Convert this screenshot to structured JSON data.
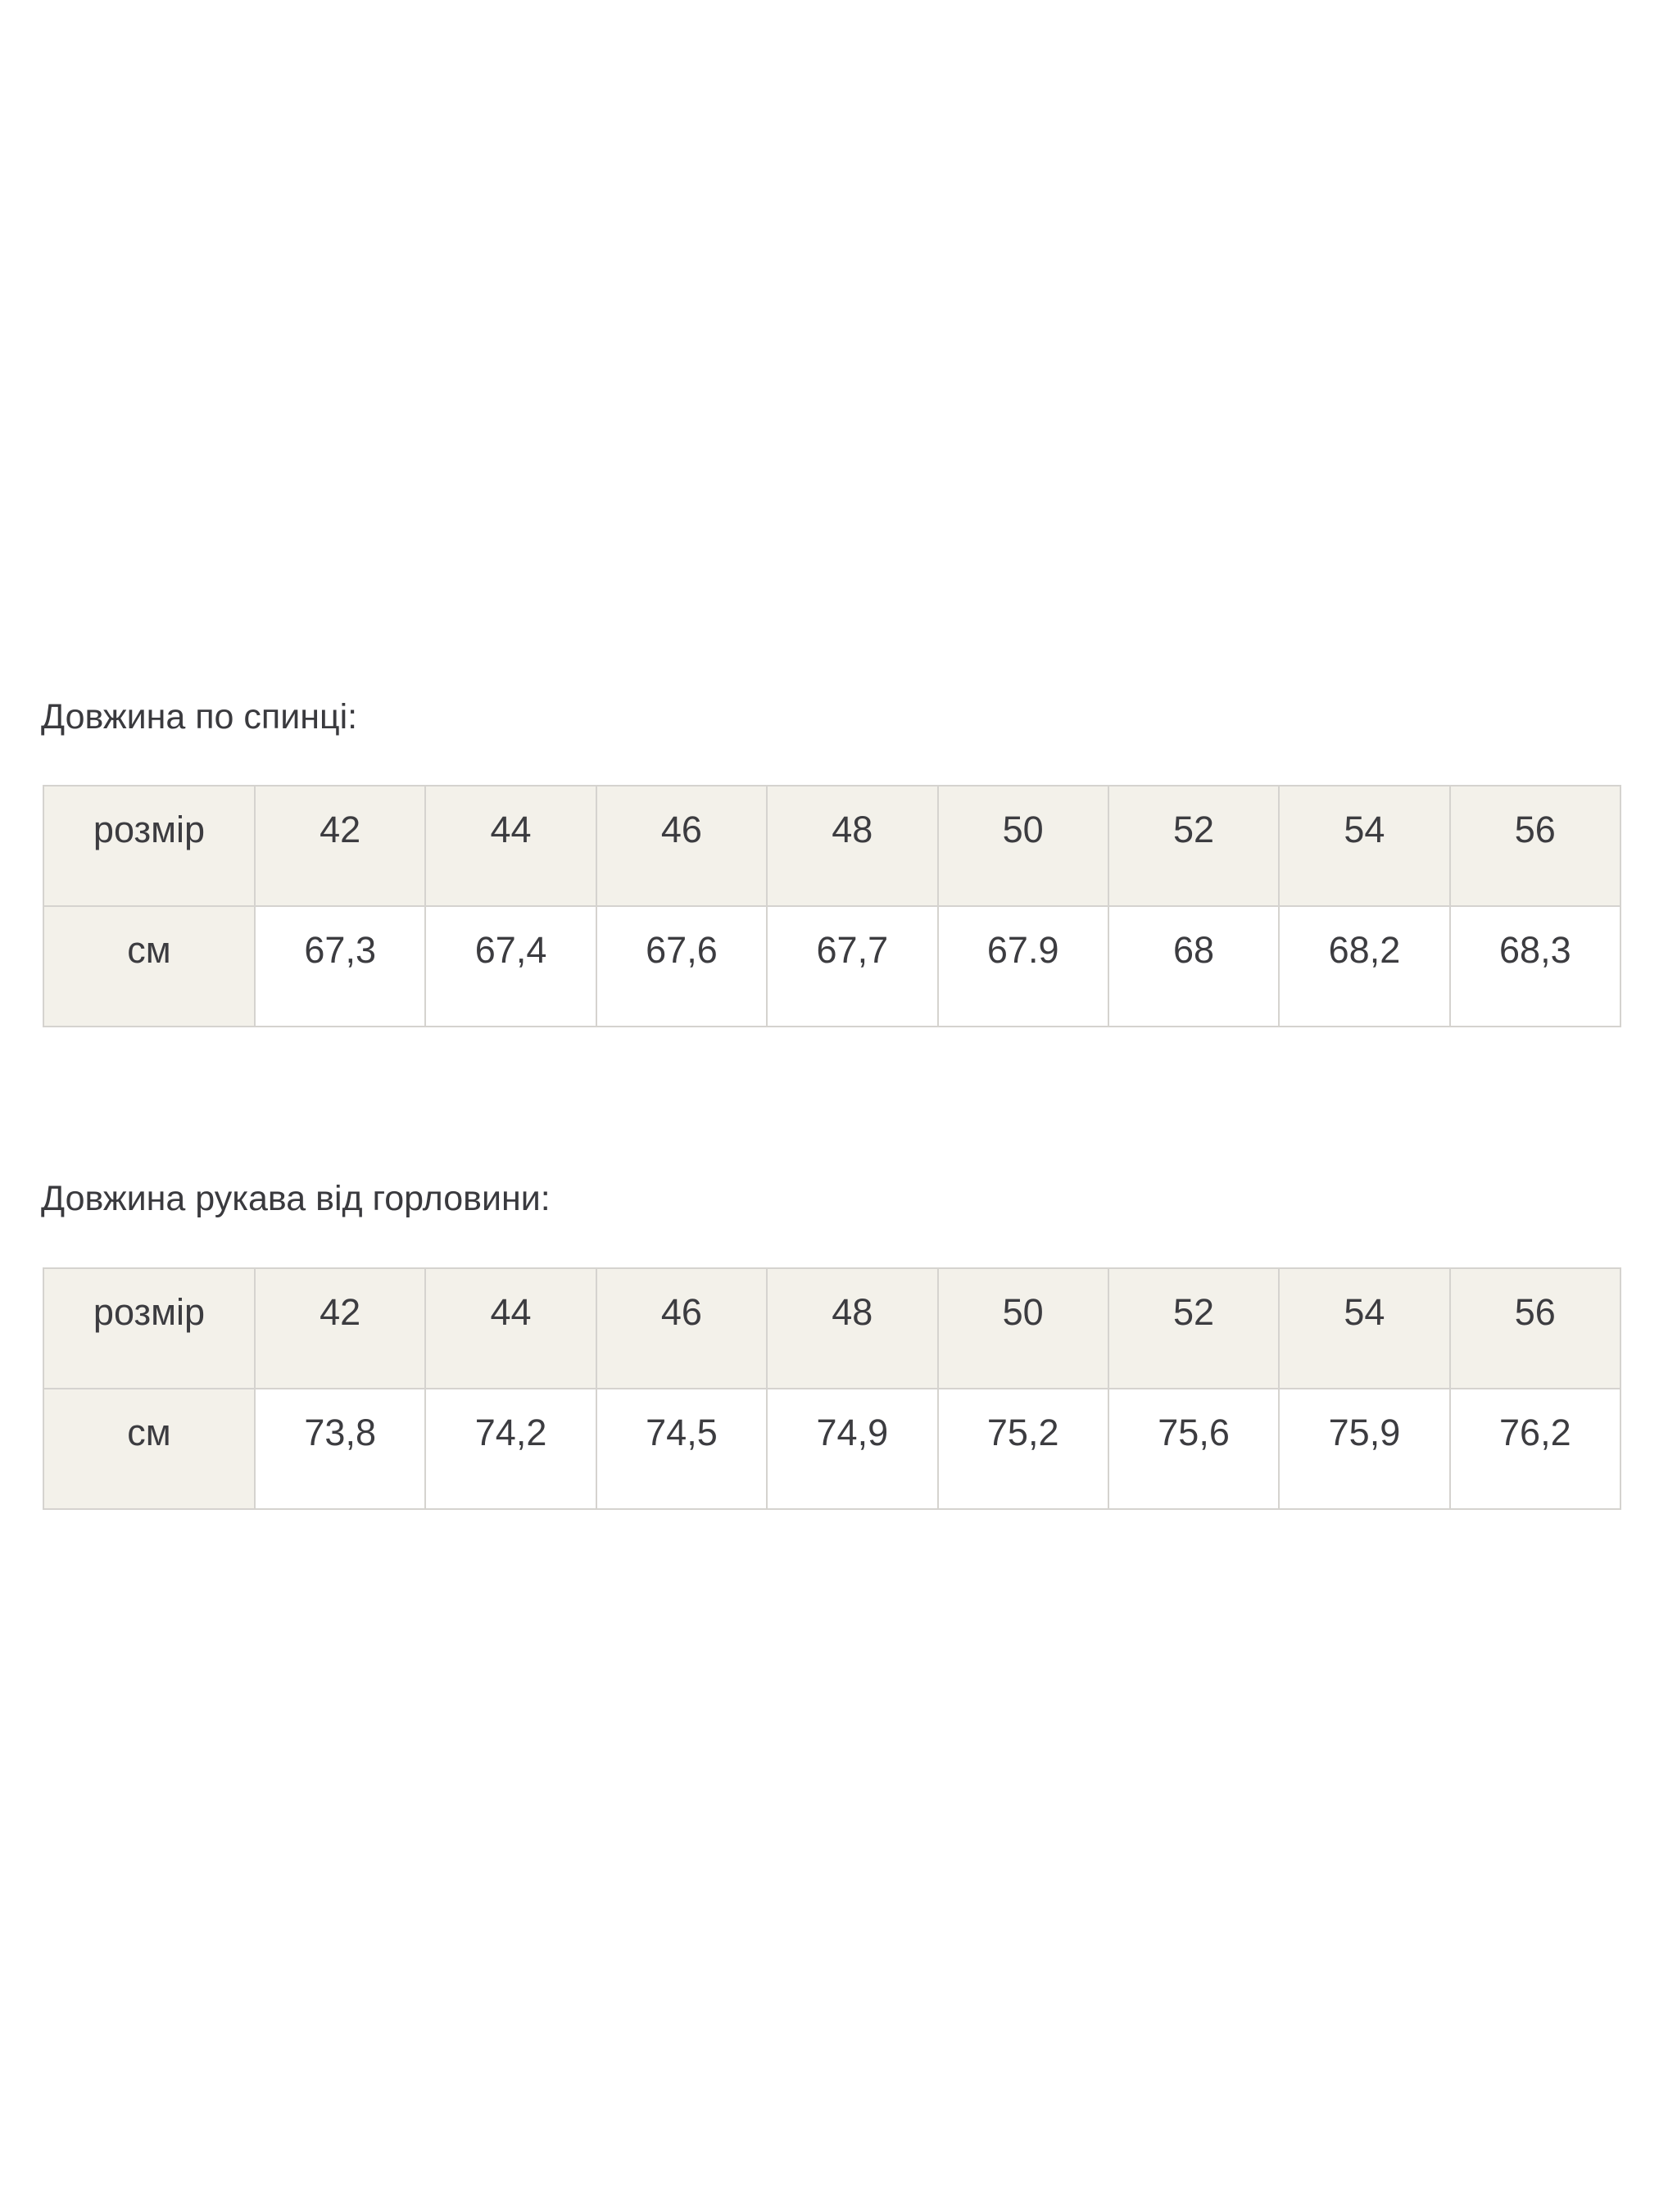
{
  "colors": {
    "page_background": "#ffffff",
    "header_cell_background": "#f3f1ea",
    "table_border": "#d5d3cf",
    "text": "#3c3c40"
  },
  "sections": [
    {
      "heading": "Довжина по спинці:",
      "table": {
        "columns": [
          "розмір",
          "42",
          "44",
          "46",
          "48",
          "50",
          "52",
          "54",
          "56"
        ],
        "rows": [
          {
            "label": "см",
            "values": [
              "67,3",
              "67,4",
              "67,6",
              "67,7",
              "67.9",
              "68",
              "68,2",
              "68,3"
            ]
          }
        ]
      }
    },
    {
      "heading": "Довжина рукава від горловини:",
      "table": {
        "columns": [
          "розмір",
          "42",
          "44",
          "46",
          "48",
          "50",
          "52",
          "54",
          "56"
        ],
        "rows": [
          {
            "label": "см",
            "values": [
              "73,8",
              "74,2",
              "74,5",
              "74,9",
              "75,2",
              "75,6",
              "75,9",
              "76,2"
            ]
          }
        ]
      }
    }
  ]
}
